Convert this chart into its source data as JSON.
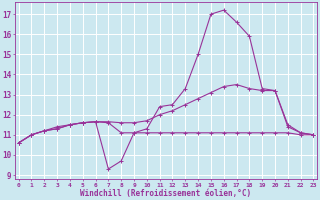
{
  "xlabel": "Windchill (Refroidissement éolien,°C)",
  "x": [
    0,
    1,
    2,
    3,
    4,
    5,
    6,
    7,
    8,
    9,
    10,
    11,
    12,
    13,
    14,
    15,
    16,
    17,
    18,
    19,
    20,
    21,
    22,
    23
  ],
  "line1": [
    10.6,
    11.0,
    11.2,
    11.3,
    11.5,
    11.6,
    11.65,
    11.6,
    11.1,
    11.1,
    11.1,
    11.1,
    11.1,
    11.1,
    11.1,
    11.1,
    11.1,
    11.1,
    11.1,
    11.1,
    11.1,
    11.1,
    11.0,
    11.0
  ],
  "line2": [
    10.6,
    11.0,
    11.2,
    11.4,
    11.5,
    11.6,
    11.65,
    9.3,
    9.7,
    11.1,
    11.3,
    12.4,
    12.5,
    13.3,
    15.0,
    17.0,
    17.2,
    16.6,
    15.9,
    13.3,
    13.2,
    11.4,
    11.1,
    11.0
  ],
  "line3": [
    10.6,
    11.0,
    11.2,
    11.3,
    11.5,
    11.6,
    11.65,
    11.65,
    11.6,
    11.6,
    11.7,
    12.0,
    12.2,
    12.5,
    12.8,
    13.1,
    13.4,
    13.5,
    13.3,
    13.2,
    13.2,
    11.5,
    11.1,
    11.0
  ],
  "bg_color": "#cce8f0",
  "line_color": "#993399",
  "grid_color": "#ffffff",
  "yticks": [
    9,
    10,
    11,
    12,
    13,
    14,
    15,
    16,
    17
  ],
  "xticks": [
    0,
    1,
    2,
    3,
    4,
    5,
    6,
    7,
    8,
    9,
    10,
    11,
    12,
    13,
    14,
    15,
    16,
    17,
    18,
    19,
    20,
    21,
    22,
    23
  ],
  "ylim_min": 8.8,
  "ylim_max": 17.6,
  "xlim_min": -0.3,
  "xlim_max": 23.3
}
